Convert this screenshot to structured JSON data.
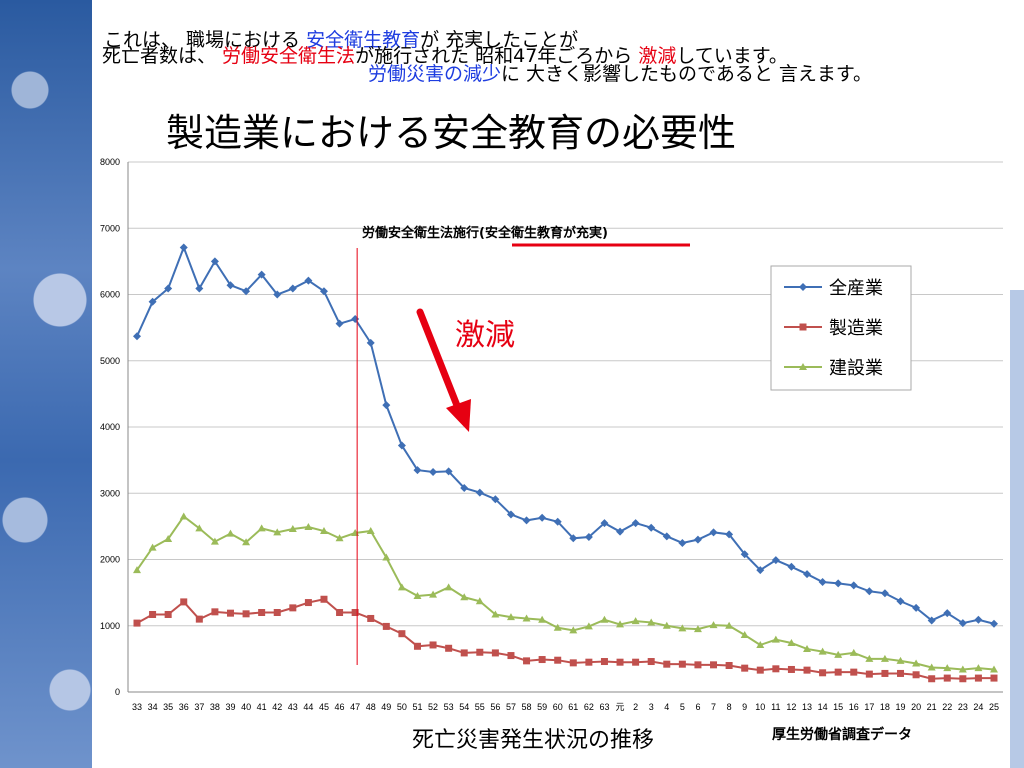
{
  "slide": {
    "caption_line1": [
      "これは、 職場における ",
      "安全衛生教育",
      "が 充実したことが"
    ],
    "caption_line2": [
      "死亡者数は、 ",
      "労働安全衛生法",
      "が施行された 昭和47年ごろから ",
      "激減",
      "しています。"
    ],
    "caption_line3": [
      "労働災害の減少",
      "に 大きく影響したものであると 言えます。"
    ],
    "title": "製造業における安全教育の必要性",
    "chart_caption": "死亡災害発生状況の推移",
    "source": "厚生労働省調査データ",
    "colors": {
      "accent_red": "#e60012",
      "accent_blue": "#1e3de0"
    }
  },
  "chart_data": {
    "type": "line",
    "ylim": [
      0,
      8000
    ],
    "yticks": [
      0,
      1000,
      2000,
      3000,
      4000,
      5000,
      6000,
      7000,
      8000
    ],
    "categories": [
      "33",
      "34",
      "35",
      "36",
      "37",
      "38",
      "39",
      "40",
      "41",
      "42",
      "43",
      "44",
      "45",
      "46",
      "47",
      "48",
      "49",
      "50",
      "51",
      "52",
      "53",
      "54",
      "55",
      "56",
      "57",
      "58",
      "59",
      "60",
      "61",
      "62",
      "63",
      "元",
      "2",
      "3",
      "4",
      "5",
      "6",
      "7",
      "8",
      "9",
      "10",
      "11",
      "12",
      "13",
      "14",
      "15",
      "16",
      "17",
      "18",
      "19",
      "20",
      "21",
      "22",
      "23",
      "24",
      "25"
    ],
    "series": [
      {
        "name": "全産業",
        "color": "#3f6fb5",
        "marker": "diamond",
        "values": [
          5370,
          5890,
          6090,
          6710,
          6090,
          6500,
          6140,
          6050,
          6300,
          6000,
          6090,
          6210,
          6050,
          5560,
          5630,
          5270,
          4330,
          3720,
          3350,
          3320,
          3330,
          3080,
          3010,
          2910,
          2680,
          2590,
          2630,
          2570,
          2320,
          2340,
          2550,
          2420,
          2550,
          2480,
          2350,
          2250,
          2300,
          2410,
          2380,
          2080,
          1840,
          1990,
          1890,
          1780,
          1660,
          1640,
          1610,
          1520,
          1490,
          1370,
          1270,
          1080,
          1190,
          1040,
          1090,
          1030
        ]
      },
      {
        "name": "製造業",
        "color": "#c0504d",
        "marker": "square",
        "values": [
          1040,
          1170,
          1170,
          1360,
          1100,
          1210,
          1190,
          1180,
          1200,
          1200,
          1270,
          1350,
          1400,
          1200,
          1200,
          1110,
          990,
          880,
          690,
          710,
          660,
          590,
          600,
          590,
          550,
          470,
          490,
          480,
          440,
          450,
          460,
          450,
          450,
          460,
          420,
          420,
          410,
          410,
          400,
          360,
          330,
          350,
          340,
          330,
          290,
          300,
          300,
          270,
          280,
          280,
          260,
          200,
          210,
          200,
          210,
          210
        ]
      },
      {
        "name": "建設業",
        "color": "#9bbb59",
        "marker": "triangle",
        "values": [
          1840,
          2180,
          2310,
          2650,
          2470,
          2270,
          2390,
          2260,
          2470,
          2410,
          2460,
          2490,
          2430,
          2320,
          2400,
          2430,
          2030,
          1580,
          1450,
          1470,
          1580,
          1430,
          1370,
          1170,
          1130,
          1110,
          1090,
          970,
          930,
          990,
          1090,
          1020,
          1070,
          1050,
          1000,
          960,
          950,
          1010,
          1000,
          860,
          710,
          790,
          740,
          650,
          610,
          560,
          590,
          500,
          500,
          470,
          430,
          370,
          360,
          340,
          360,
          340
        ]
      }
    ],
    "legend_position": "top-right",
    "grid": true,
    "annotations": {
      "event_label": "労働安全衛生法施行(",
      "event_label_emph": "安全衛生教育が充実",
      "event_label_end": ")",
      "event_category": "47",
      "arrow_label": "激減"
    }
  }
}
